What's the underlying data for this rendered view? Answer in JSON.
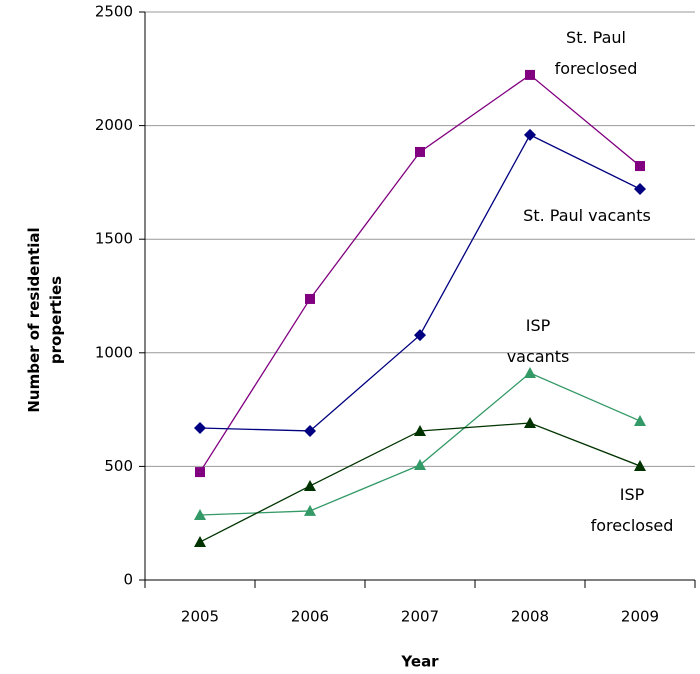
{
  "chart_data": {
    "type": "line",
    "x_label": "Year",
    "y_label": "Number of residential properties",
    "categories": [
      "2005",
      "2006",
      "2007",
      "2008",
      "2009"
    ],
    "ylim": [
      0,
      2500
    ],
    "yticks": [
      0,
      500,
      1000,
      1500,
      2000,
      2500
    ],
    "grid": true,
    "series": [
      {
        "name": "St. Paul foreclosed",
        "color": "#800080",
        "marker": "square",
        "values": [
          475,
          1237,
          1884,
          2223,
          1822
        ]
      },
      {
        "name": "St. Paul vacants",
        "color": "#000080",
        "marker": "diamond",
        "values": [
          669,
          656,
          1078,
          1959,
          1721
        ]
      },
      {
        "name": "ISP vacants",
        "color": "#339966",
        "marker": "triangle",
        "values": [
          286,
          304,
          506,
          911,
          700
        ]
      },
      {
        "name": "ISP foreclosed",
        "color": "#003300",
        "marker": "triangle",
        "values": [
          167,
          414,
          656,
          691,
          502
        ]
      }
    ]
  }
}
